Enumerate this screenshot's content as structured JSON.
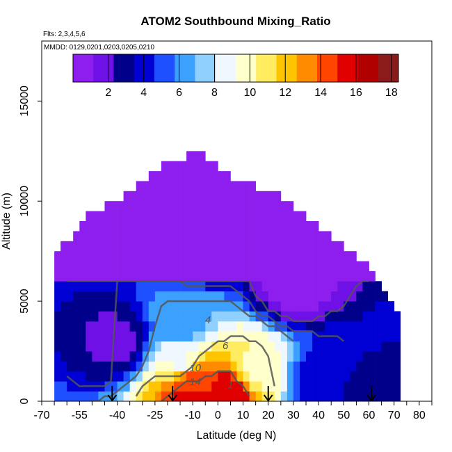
{
  "chart_data": {
    "type": "heatmap",
    "title": "ATOM2 Southbound Mixing_Ratio",
    "subtitle_flights": "Flts: 2,3,4,5,6",
    "subtitle_dates": "MMDD: 0129,0201,0203,0205,0210",
    "xlabel": "Latitude (deg N)",
    "ylabel": "Altitude (m)",
    "xlim": [
      -70,
      85
    ],
    "ylim": [
      0,
      18000
    ],
    "x_ticks": [
      -70,
      -55,
      -40,
      -25,
      -10,
      0,
      10,
      20,
      30,
      40,
      50,
      60,
      70,
      80
    ],
    "x_ticks_minor": [
      -65,
      -60,
      -50,
      -45,
      -35,
      -30,
      -20,
      -15,
      -5,
      5,
      15,
      25,
      35,
      45,
      55,
      65,
      75,
      85
    ],
    "y_ticks": [
      0,
      5000,
      10000,
      15000
    ],
    "colorbar": {
      "range": [
        0,
        18.4
      ],
      "ticks": [
        2,
        4,
        6,
        8,
        10,
        12,
        14,
        16,
        18
      ],
      "colors": [
        "#8e1eee",
        "#6e10e6",
        "#00008b",
        "#0000d4",
        "#1e50ff",
        "#3ca0ff",
        "#8fd0ff",
        "#f0f8ff",
        "#ffffcc",
        "#ffec60",
        "#ffc400",
        "#ff8c00",
        "#ff4500",
        "#e00000",
        "#b00000",
        "#8b1a1a"
      ]
    },
    "contour_labels": [
      "4",
      "6",
      "10",
      "14",
      "1"
    ],
    "flight_markers_lat": [
      -42,
      -18,
      20,
      61
    ],
    "profile_top_m": [
      [
        -65,
        7500
      ],
      [
        -60,
        8000
      ],
      [
        -55,
        8800
      ],
      [
        -50,
        9300
      ],
      [
        -45,
        9700
      ],
      [
        -40,
        10000
      ],
      [
        -35,
        10500
      ],
      [
        -30,
        10900
      ],
      [
        -25,
        11500
      ],
      [
        -20,
        12000
      ],
      [
        -15,
        12000
      ],
      [
        -10,
        12500
      ],
      [
        -5,
        12000
      ],
      [
        0,
        11500
      ],
      [
        5,
        11000
      ],
      [
        10,
        10800
      ],
      [
        15,
        10500
      ],
      [
        20,
        10300
      ],
      [
        25,
        10000
      ],
      [
        30,
        9500
      ],
      [
        35,
        9000
      ],
      [
        40,
        8500
      ],
      [
        45,
        8000
      ],
      [
        50,
        7500
      ],
      [
        55,
        7000
      ],
      [
        60,
        6300
      ],
      [
        65,
        5500
      ],
      [
        70,
        4500
      ]
    ],
    "mixing_ratio_samples": [
      {
        "lat": -40,
        "alt": 3000,
        "value": 2
      },
      {
        "lat": -15,
        "alt": 4000,
        "value": 6
      },
      {
        "lat": -15,
        "alt": 2000,
        "value": 9
      },
      {
        "lat": -10,
        "alt": 1000,
        "value": 14
      },
      {
        "lat": -10,
        "alt": 300,
        "value": 16
      },
      {
        "lat": 5,
        "alt": 500,
        "value": 16
      },
      {
        "lat": 15,
        "alt": 1500,
        "value": 10
      },
      {
        "lat": 40,
        "alt": 1000,
        "value": 4
      },
      {
        "lat": 60,
        "alt": 300,
        "value": 3
      },
      {
        "lat": -10,
        "alt": 8000,
        "value": 1
      },
      {
        "lat": 30,
        "alt": 6000,
        "value": 0.5
      }
    ]
  }
}
